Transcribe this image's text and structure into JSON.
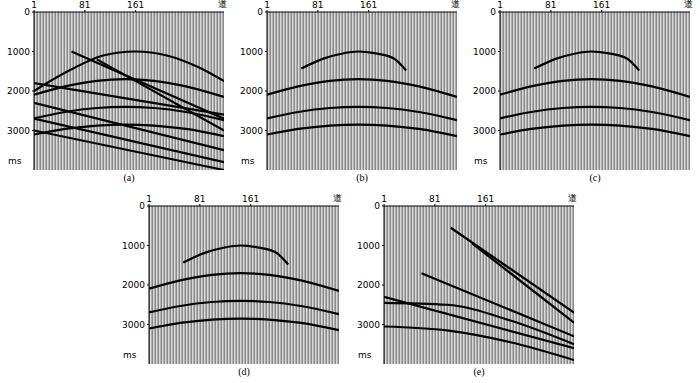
{
  "chart_data": [
    {
      "type": "line",
      "title": "(a)",
      "x_label": "道",
      "y_label": "ms",
      "xlim": [
        1,
        300
      ],
      "xticks": [
        1,
        81,
        161
      ],
      "ylim": [
        0,
        4000
      ],
      "yticks": [
        0,
        1000,
        2000,
        3000
      ],
      "color": "#000000",
      "series": [
        {
          "x": [
            1,
            60,
            110,
            160,
            210,
            260,
            300
          ],
          "values": [
            2000,
            1450,
            1100,
            1000,
            1100,
            1400,
            1750
          ]
        },
        {
          "x": [
            1,
            50,
            100,
            145,
            190,
            240,
            300
          ],
          "values": [
            2095,
            1882,
            1743,
            1700,
            1743,
            1882,
            2151
          ]
        },
        {
          "x": [
            1,
            50,
            100,
            145,
            190,
            240,
            300
          ],
          "values": [
            2694,
            2531,
            2430,
            2400,
            2430,
            2531,
            2738
          ]
        },
        {
          "x": [
            1,
            50,
            100,
            145,
            190,
            240,
            300
          ],
          "values": [
            3102,
            2961,
            2876,
            2850,
            2876,
            2961,
            3141
          ]
        },
        {
          "x": [
            1,
            300
          ],
          "values": [
            1800,
            2600
          ]
        },
        {
          "x": [
            60,
            300
          ],
          "values": [
            1000,
            2700
          ]
        },
        {
          "x": [
            100,
            300
          ],
          "values": [
            1200,
            3000
          ]
        },
        {
          "x": [
            1,
            300
          ],
          "values": [
            2300,
            3500
          ]
        },
        {
          "x": [
            1,
            300
          ],
          "values": [
            2700,
            3800
          ]
        },
        {
          "x": [
            1,
            300
          ],
          "values": [
            3000,
            4000
          ]
        }
      ]
    },
    {
      "type": "line",
      "title": "(b)",
      "x_label": "道",
      "y_label": "ms",
      "xlim": [
        1,
        300
      ],
      "xticks": [
        1,
        81,
        161
      ],
      "ylim": [
        0,
        4000
      ],
      "yticks": [
        0,
        1000,
        2000,
        3000
      ],
      "color": "#000000",
      "series": [
        {
          "x": [
            55,
            90,
            120,
            145,
            170,
            200,
            220
          ],
          "values": [
            1430,
            1180,
            1050,
            1000,
            1040,
            1170,
            1480
          ]
        },
        {
          "x": [
            1,
            50,
            100,
            145,
            190,
            240,
            300
          ],
          "values": [
            2095,
            1882,
            1743,
            1700,
            1743,
            1882,
            2151
          ]
        },
        {
          "x": [
            1,
            50,
            100,
            145,
            190,
            240,
            300
          ],
          "values": [
            2694,
            2531,
            2430,
            2400,
            2430,
            2531,
            2738
          ]
        },
        {
          "x": [
            1,
            50,
            100,
            145,
            190,
            240,
            300
          ],
          "values": [
            3102,
            2961,
            2876,
            2850,
            2876,
            2961,
            3141
          ]
        }
      ]
    },
    {
      "type": "line",
      "title": "(c)",
      "x_label": "道",
      "y_label": "ms",
      "xlim": [
        1,
        300
      ],
      "xticks": [
        1,
        81,
        161
      ],
      "ylim": [
        0,
        4000
      ],
      "yticks": [
        0,
        1000,
        2000,
        3000
      ],
      "color": "#000000",
      "series": [
        {
          "x": [
            55,
            90,
            120,
            145,
            170,
            200,
            220
          ],
          "values": [
            1430,
            1180,
            1050,
            1000,
            1040,
            1170,
            1480
          ]
        },
        {
          "x": [
            1,
            50,
            100,
            145,
            190,
            240,
            300
          ],
          "values": [
            2095,
            1882,
            1743,
            1700,
            1743,
            1882,
            2151
          ]
        },
        {
          "x": [
            1,
            50,
            100,
            145,
            190,
            240,
            300
          ],
          "values": [
            2694,
            2531,
            2430,
            2400,
            2430,
            2531,
            2738
          ]
        },
        {
          "x": [
            1,
            50,
            100,
            145,
            190,
            240,
            300
          ],
          "values": [
            3102,
            2961,
            2876,
            2850,
            2876,
            2961,
            3141
          ]
        }
      ]
    },
    {
      "type": "line",
      "title": "(d)",
      "x_label": "道",
      "y_label": "ms",
      "xlim": [
        1,
        300
      ],
      "xticks": [
        1,
        81,
        161
      ],
      "ylim": [
        0,
        4000
      ],
      "yticks": [
        0,
        1000,
        2000,
        3000
      ],
      "color": "#000000",
      "series": [
        {
          "x": [
            55,
            90,
            120,
            145,
            170,
            200,
            220
          ],
          "values": [
            1430,
            1180,
            1050,
            1000,
            1040,
            1170,
            1480
          ]
        },
        {
          "x": [
            1,
            50,
            100,
            145,
            190,
            240,
            300
          ],
          "values": [
            2095,
            1882,
            1743,
            1700,
            1743,
            1882,
            2151
          ]
        },
        {
          "x": [
            1,
            50,
            100,
            145,
            190,
            240,
            300
          ],
          "values": [
            2694,
            2531,
            2430,
            2400,
            2430,
            2531,
            2738
          ]
        },
        {
          "x": [
            1,
            50,
            100,
            145,
            190,
            240,
            300
          ],
          "values": [
            3102,
            2961,
            2876,
            2850,
            2876,
            2961,
            3141
          ]
        }
      ]
    },
    {
      "type": "line",
      "title": "(e)",
      "x_label": "道",
      "y_label": "ms",
      "xlim": [
        1,
        300
      ],
      "xticks": [
        1,
        81,
        161
      ],
      "ylim": [
        0,
        4000
      ],
      "yticks": [
        0,
        1000,
        2000,
        3000
      ],
      "color": "#000000",
      "series": [
        {
          "x": [
            106,
            300
          ],
          "values": [
            550,
            2700
          ]
        },
        {
          "x": [
            140,
            300
          ],
          "values": [
            950,
            2950
          ]
        },
        {
          "x": [
            60,
            300
          ],
          "values": [
            1700,
            3300
          ]
        },
        {
          "x": [
            1,
            300
          ],
          "values": [
            2300,
            3600
          ]
        },
        {
          "x": [
            1,
            100,
            200,
            300
          ],
          "values": [
            2450,
            2500,
            2900,
            3500
          ]
        },
        {
          "x": [
            1,
            100,
            200,
            300
          ],
          "values": [
            3050,
            3150,
            3450,
            3900
          ]
        }
      ]
    }
  ]
}
